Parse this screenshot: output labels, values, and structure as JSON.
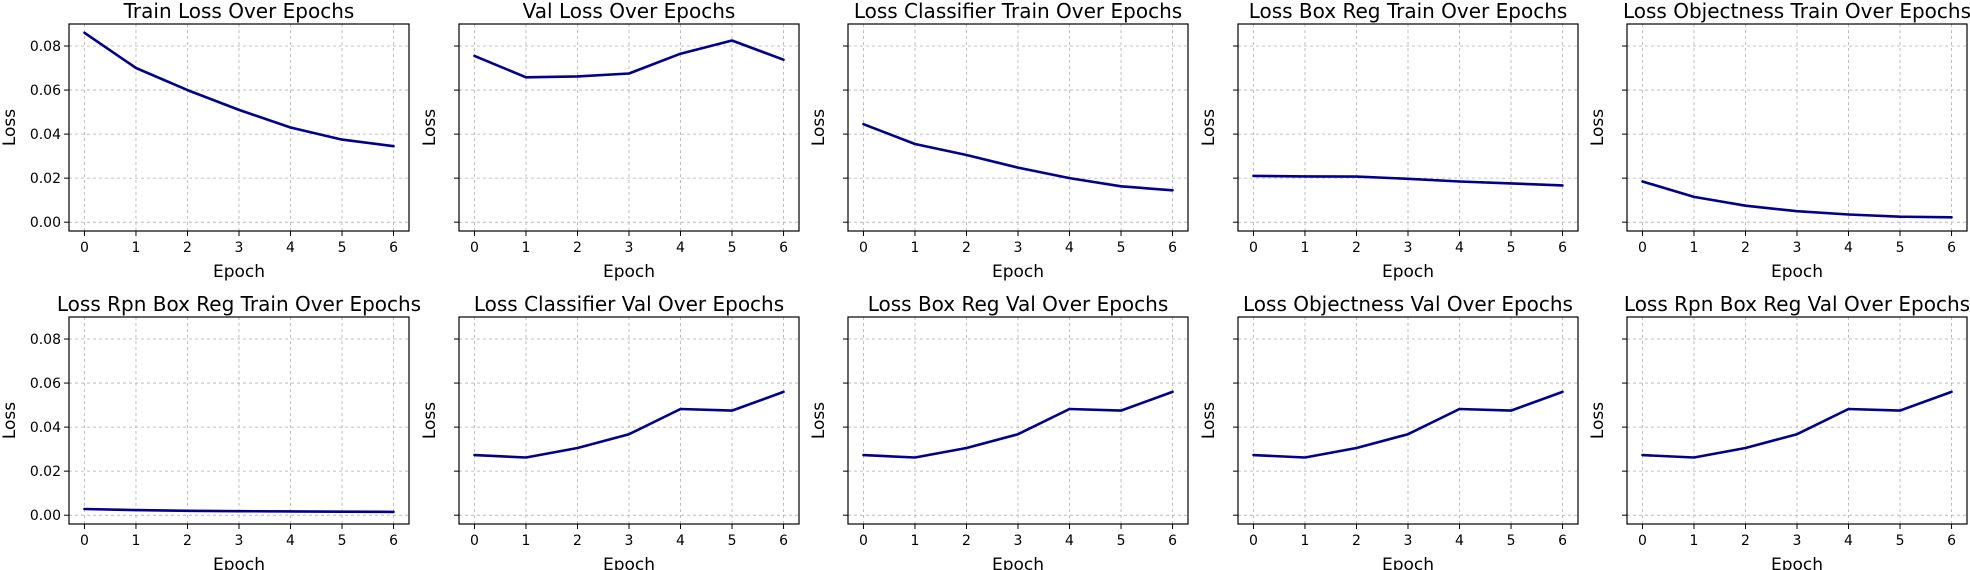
{
  "figure": {
    "line_color": "#00008b"
  },
  "chart_data": [
    {
      "type": "line",
      "title": "Train Loss Over Epochs",
      "xlabel": "Epoch",
      "ylabel": "Loss",
      "x": [
        0,
        1,
        2,
        3,
        4,
        5,
        6
      ],
      "values": [
        0.086,
        0.07,
        0.06,
        0.051,
        0.043,
        0.0375,
        0.0345
      ],
      "xlim": [
        -0.3,
        6.3
      ],
      "ylim": [
        -0.004,
        0.09
      ],
      "yticks": [
        0.0,
        0.02,
        0.04,
        0.06,
        0.08
      ],
      "ytick_labels": [
        "0.00",
        "0.02",
        "0.04",
        "0.06",
        "0.08"
      ],
      "show_ytick_labels": true,
      "grid": true
    },
    {
      "type": "line",
      "title": "Val Loss Over Epochs",
      "xlabel": "Epoch",
      "ylabel": "Loss",
      "x": [
        0,
        1,
        2,
        3,
        4,
        5,
        6
      ],
      "values": [
        0.0755,
        0.0658,
        0.0662,
        0.0675,
        0.0765,
        0.0825,
        0.0738
      ],
      "xlim": [
        -0.3,
        6.3
      ],
      "ylim": [
        -0.004,
        0.09
      ],
      "yticks": [
        0.0,
        0.02,
        0.04,
        0.06,
        0.08
      ],
      "show_ytick_labels": false,
      "grid": true
    },
    {
      "type": "line",
      "title": "Loss Classifier Train Over Epochs",
      "xlabel": "Epoch",
      "ylabel": "Loss",
      "x": [
        0,
        1,
        2,
        3,
        4,
        5,
        6
      ],
      "values": [
        0.0445,
        0.0355,
        0.0305,
        0.0248,
        0.02,
        0.0163,
        0.0145
      ],
      "xlim": [
        -0.3,
        6.3
      ],
      "ylim": [
        -0.004,
        0.09
      ],
      "yticks": [
        0.0,
        0.02,
        0.04,
        0.06,
        0.08
      ],
      "show_ytick_labels": false,
      "grid": true
    },
    {
      "type": "line",
      "title": "Loss Box Reg Train Over Epochs",
      "xlabel": "Epoch",
      "ylabel": "Loss",
      "x": [
        0,
        1,
        2,
        3,
        4,
        5,
        6
      ],
      "values": [
        0.021,
        0.0208,
        0.0207,
        0.0197,
        0.0185,
        0.0176,
        0.0167
      ],
      "xlim": [
        -0.3,
        6.3
      ],
      "ylim": [
        -0.004,
        0.09
      ],
      "yticks": [
        0.0,
        0.02,
        0.04,
        0.06,
        0.08
      ],
      "show_ytick_labels": false,
      "grid": true
    },
    {
      "type": "line",
      "title": "Loss Objectness Train Over Epochs",
      "xlabel": "Epoch",
      "ylabel": "Loss",
      "x": [
        0,
        1,
        2,
        3,
        4,
        5,
        6
      ],
      "values": [
        0.0185,
        0.0115,
        0.0075,
        0.005,
        0.0035,
        0.0025,
        0.0022
      ],
      "xlim": [
        -0.3,
        6.3
      ],
      "ylim": [
        -0.004,
        0.09
      ],
      "yticks": [
        0.0,
        0.02,
        0.04,
        0.06,
        0.08
      ],
      "show_ytick_labels": false,
      "grid": true
    },
    {
      "type": "line",
      "title": "Loss Rpn Box Reg Train Over Epochs",
      "xlabel": "Epoch",
      "ylabel": "Loss",
      "x": [
        0,
        1,
        2,
        3,
        4,
        5,
        6
      ],
      "values": [
        0.0028,
        0.0023,
        0.002,
        0.0018,
        0.0017,
        0.0016,
        0.0015
      ],
      "xlim": [
        -0.3,
        6.3
      ],
      "ylim": [
        -0.004,
        0.09
      ],
      "yticks": [
        0.0,
        0.02,
        0.04,
        0.06,
        0.08
      ],
      "ytick_labels": [
        "0.00",
        "0.02",
        "0.04",
        "0.06",
        "0.08"
      ],
      "show_ytick_labels": true,
      "grid": true
    },
    {
      "type": "line",
      "title": "Loss Classifier Val Over Epochs",
      "xlabel": "Epoch",
      "ylabel": "Loss",
      "x": [
        0,
        1,
        2,
        3,
        4,
        5,
        6
      ],
      "values": [
        0.0273,
        0.0262,
        0.0305,
        0.0368,
        0.0482,
        0.0475,
        0.056
      ],
      "xlim": [
        -0.3,
        6.3
      ],
      "ylim": [
        -0.004,
        0.09
      ],
      "yticks": [
        0.0,
        0.02,
        0.04,
        0.06,
        0.08
      ],
      "show_ytick_labels": false,
      "grid": true
    },
    {
      "type": "line",
      "title": "Loss Box Reg Val Over Epochs",
      "xlabel": "Epoch",
      "ylabel": "Loss",
      "x": [
        0,
        1,
        2,
        3,
        4,
        5,
        6
      ],
      "values": [
        0.0273,
        0.0262,
        0.0305,
        0.0368,
        0.0482,
        0.0475,
        0.056
      ],
      "xlim": [
        -0.3,
        6.3
      ],
      "ylim": [
        -0.004,
        0.09
      ],
      "yticks": [
        0.0,
        0.02,
        0.04,
        0.06,
        0.08
      ],
      "show_ytick_labels": false,
      "grid": true
    },
    {
      "type": "line",
      "title": "Loss Objectness Val Over Epochs",
      "xlabel": "Epoch",
      "ylabel": "Loss",
      "x": [
        0,
        1,
        2,
        3,
        4,
        5,
        6
      ],
      "values": [
        0.0273,
        0.0262,
        0.0305,
        0.0368,
        0.0482,
        0.0475,
        0.056
      ],
      "xlim": [
        -0.3,
        6.3
      ],
      "ylim": [
        -0.004,
        0.09
      ],
      "yticks": [
        0.0,
        0.02,
        0.04,
        0.06,
        0.08
      ],
      "show_ytick_labels": false,
      "grid": true
    },
    {
      "type": "line",
      "title": "Loss Rpn Box Reg Val Over Epochs",
      "xlabel": "Epoch",
      "ylabel": "Loss",
      "x": [
        0,
        1,
        2,
        3,
        4,
        5,
        6
      ],
      "values": [
        0.0273,
        0.0262,
        0.0305,
        0.0368,
        0.0482,
        0.0475,
        0.056
      ],
      "xlim": [
        -0.3,
        6.3
      ],
      "ylim": [
        -0.004,
        0.09
      ],
      "yticks": [
        0.0,
        0.02,
        0.04,
        0.06,
        0.08
      ],
      "show_ytick_labels": false,
      "grid": true
    }
  ]
}
